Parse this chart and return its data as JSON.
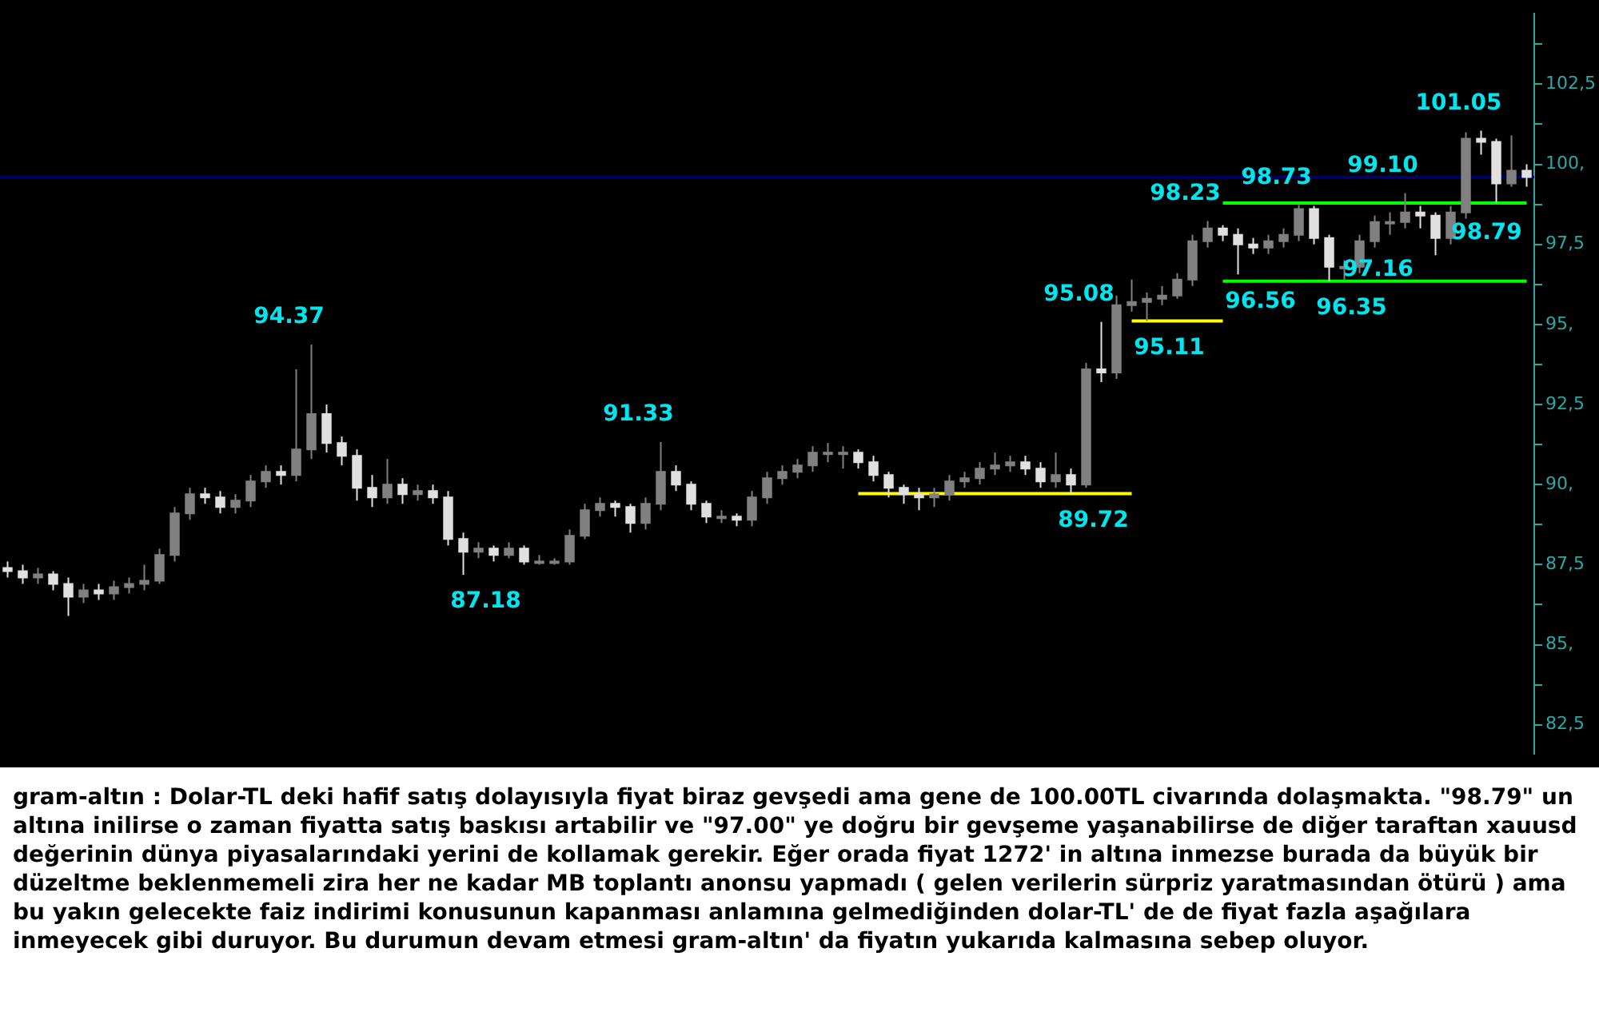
{
  "chart_data": {
    "type": "candlestick",
    "colors": [
      "#e0e0e0",
      "#e0e0e0",
      "#808080",
      "#e0e0e0",
      "#e0e0e0",
      "#808080",
      "#e0e0e0",
      "#808080",
      "#808080",
      "#808080",
      "#808080",
      "#808080",
      "#808080",
      "#e0e0e0",
      "#e0e0e0",
      "#808080",
      "#808080",
      "#808080",
      "#e0e0e0",
      "#808080",
      "#808080",
      "#e0e0e0",
      "#e0e0e0",
      "#e0e0e0",
      "#e0e0e0",
      "#808080",
      "#e0e0e0",
      "#808080",
      "#e0e0e0",
      "#e0e0e0",
      "#e0e0e0",
      "#808080",
      "#e0e0e0",
      "#808080",
      "#e0e0e0",
      "#808080",
      "#808080",
      "#808080",
      "#808080",
      "#808080",
      "#e0e0e0",
      "#e0e0e0",
      "#808080",
      "#808080",
      "#e0e0e0",
      "#e0e0e0",
      "#e0e0e0",
      "#808080",
      "#e0e0e0",
      "#808080",
      "#808080",
      "#808080",
      "#808080",
      "#808080",
      "#808080",
      "#808080",
      "#e0e0e0",
      "#e0e0e0",
      "#e0e0e0",
      "#e0e0e0",
      "#e0e0e0",
      "#808080",
      "#808080",
      "#808080",
      "#808080",
      "#808080",
      "#808080",
      "#e0e0e0",
      "#e0e0e0",
      "#808080",
      "#e0e0e0",
      "#808080",
      "#e0e0e0",
      "#808080",
      "#808080",
      "#808080",
      "#808080",
      "#808080",
      "#808080",
      "#808080",
      "#e0e0e0",
      "#e0e0e0",
      "#e0e0e0",
      "#808080",
      "#808080",
      "#808080",
      "#e0e0e0",
      "#e0e0e0",
      "#808080",
      "#808080",
      "#808080",
      "#808080",
      "#808080",
      "#e0e0e0",
      "#e0e0e0",
      "#808080",
      "#808080",
      "#e0e0e0",
      "#e0e0e0",
      "#808080",
      "#e0e0e0"
    ],
    "categories": [
      null,
      null,
      null,
      null,
      null,
      null,
      null,
      null,
      null,
      null,
      null,
      null,
      null,
      null,
      null,
      null,
      null,
      null,
      null,
      null,
      null,
      null,
      null,
      null,
      null,
      null,
      null,
      null,
      null,
      null,
      null,
      null,
      null,
      null,
      null,
      null,
      null,
      null,
      null,
      null,
      null,
      null,
      null,
      null,
      null,
      null,
      null,
      null,
      null,
      null,
      null,
      null,
      null,
      null,
      null,
      null,
      null,
      null,
      null,
      null,
      null,
      null,
      null,
      null,
      null,
      null,
      null,
      null,
      null,
      null,
      null,
      null,
      null,
      null,
      null,
      null,
      null,
      null,
      null,
      null,
      null,
      null,
      null,
      null,
      null,
      null,
      null,
      null,
      null,
      null,
      null,
      null,
      null,
      null,
      null,
      null,
      null,
      null,
      null,
      null,
      null
    ],
    "ohlc": [
      [
        87.4,
        87.6,
        87.1,
        87.3
      ],
      [
        87.3,
        87.5,
        86.9,
        87.1
      ],
      [
        87.1,
        87.4,
        86.9,
        87.2
      ],
      [
        87.2,
        87.3,
        86.7,
        86.9
      ],
      [
        86.9,
        87.1,
        85.9,
        86.5
      ],
      [
        86.5,
        86.9,
        86.3,
        86.7
      ],
      [
        86.7,
        86.9,
        86.4,
        86.6
      ],
      [
        86.6,
        87.0,
        86.4,
        86.8
      ],
      [
        86.8,
        87.1,
        86.6,
        86.9
      ],
      [
        86.9,
        87.5,
        86.7,
        87.0
      ],
      [
        87.0,
        88.0,
        86.9,
        87.8
      ],
      [
        87.8,
        89.3,
        87.6,
        89.1
      ],
      [
        89.1,
        89.9,
        88.9,
        89.7
      ],
      [
        89.7,
        89.9,
        89.4,
        89.6
      ],
      [
        89.6,
        89.8,
        89.1,
        89.3
      ],
      [
        89.3,
        89.7,
        89.1,
        89.5
      ],
      [
        89.5,
        90.3,
        89.3,
        90.1
      ],
      [
        90.1,
        90.6,
        89.9,
        90.4
      ],
      [
        90.4,
        90.6,
        90.0,
        90.3
      ],
      [
        90.3,
        93.6,
        90.1,
        91.1
      ],
      [
        91.1,
        94.37,
        90.8,
        92.2
      ],
      [
        92.2,
        92.5,
        91.0,
        91.3
      ],
      [
        91.3,
        91.5,
        90.6,
        90.9
      ],
      [
        90.9,
        91.1,
        89.5,
        89.9
      ],
      [
        89.9,
        90.3,
        89.3,
        89.6
      ],
      [
        89.6,
        90.8,
        89.4,
        90.0
      ],
      [
        90.0,
        90.2,
        89.4,
        89.7
      ],
      [
        89.7,
        90.0,
        89.5,
        89.8
      ],
      [
        89.8,
        90.0,
        89.4,
        89.6
      ],
      [
        89.6,
        89.8,
        88.1,
        88.3
      ],
      [
        88.3,
        88.5,
        87.18,
        87.9
      ],
      [
        87.9,
        88.2,
        87.7,
        88.0
      ],
      [
        88.0,
        88.1,
        87.6,
        87.8
      ],
      [
        87.8,
        88.2,
        87.7,
        88.0
      ],
      [
        88.0,
        88.1,
        87.5,
        87.6
      ],
      [
        87.6,
        87.8,
        87.5,
        87.6
      ],
      [
        87.6,
        87.7,
        87.5,
        87.6
      ],
      [
        87.6,
        88.6,
        87.5,
        88.4
      ],
      [
        88.4,
        89.4,
        88.3,
        89.2
      ],
      [
        89.2,
        89.6,
        89.0,
        89.4
      ],
      [
        89.4,
        89.5,
        89.0,
        89.3
      ],
      [
        89.3,
        89.4,
        88.5,
        88.8
      ],
      [
        88.8,
        89.6,
        88.6,
        89.4
      ],
      [
        89.4,
        91.33,
        89.2,
        90.4
      ],
      [
        90.4,
        90.6,
        89.8,
        90.0
      ],
      [
        90.0,
        90.1,
        89.2,
        89.4
      ],
      [
        89.4,
        89.5,
        88.8,
        89.0
      ],
      [
        89.0,
        89.2,
        88.8,
        89.0
      ],
      [
        89.0,
        89.1,
        88.7,
        88.9
      ],
      [
        88.9,
        89.8,
        88.7,
        89.6
      ],
      [
        89.6,
        90.4,
        89.4,
        90.2
      ],
      [
        90.2,
        90.6,
        90.0,
        90.4
      ],
      [
        90.4,
        90.8,
        90.2,
        90.6
      ],
      [
        90.6,
        91.2,
        90.4,
        91.0
      ],
      [
        91.0,
        91.3,
        90.7,
        91.0
      ],
      [
        91.0,
        91.2,
        90.5,
        91.0
      ],
      [
        91.0,
        91.1,
        90.5,
        90.7
      ],
      [
        90.7,
        90.9,
        90.1,
        90.3
      ],
      [
        90.3,
        90.4,
        89.6,
        89.9
      ],
      [
        89.9,
        90.0,
        89.4,
        89.7
      ],
      [
        89.7,
        89.9,
        89.2,
        89.6
      ],
      [
        89.6,
        89.9,
        89.3,
        89.7
      ],
      [
        89.7,
        90.3,
        89.5,
        90.1
      ],
      [
        90.1,
        90.4,
        89.9,
        90.2
      ],
      [
        90.2,
        90.7,
        90.0,
        90.5
      ],
      [
        90.5,
        91.0,
        90.3,
        90.6
      ],
      [
        90.6,
        90.9,
        90.4,
        90.7
      ],
      [
        90.7,
        90.9,
        90.3,
        90.5
      ],
      [
        90.5,
        90.7,
        89.9,
        90.1
      ],
      [
        90.1,
        91.0,
        89.9,
        90.3
      ],
      [
        90.3,
        90.5,
        89.72,
        90.0
      ],
      [
        90.0,
        93.8,
        89.9,
        93.6
      ],
      [
        93.6,
        95.08,
        93.2,
        93.5
      ],
      [
        93.5,
        95.9,
        93.3,
        95.6
      ],
      [
        95.6,
        96.4,
        95.4,
        95.7
      ],
      [
        95.7,
        96.0,
        95.11,
        95.8
      ],
      [
        95.8,
        96.2,
        95.6,
        95.9
      ],
      [
        95.9,
        96.6,
        95.8,
        96.4
      ],
      [
        96.4,
        97.8,
        96.2,
        97.6
      ],
      [
        97.6,
        98.23,
        97.4,
        98.0
      ],
      [
        98.0,
        98.1,
        97.6,
        97.8
      ],
      [
        97.8,
        98.0,
        96.56,
        97.5
      ],
      [
        97.5,
        97.7,
        97.2,
        97.4
      ],
      [
        97.4,
        97.8,
        97.2,
        97.6
      ],
      [
        97.6,
        98.0,
        97.4,
        97.8
      ],
      [
        97.8,
        98.73,
        97.6,
        98.6
      ],
      [
        98.6,
        98.7,
        97.5,
        97.7
      ],
      [
        97.7,
        97.8,
        96.35,
        96.8
      ],
      [
        96.8,
        97.0,
        96.4,
        96.8
      ],
      [
        96.8,
        97.8,
        96.6,
        97.6
      ],
      [
        97.6,
        98.4,
        97.4,
        98.2
      ],
      [
        98.2,
        98.5,
        97.8,
        98.2
      ],
      [
        98.2,
        99.1,
        98.0,
        98.5
      ],
      [
        98.5,
        98.7,
        98.0,
        98.4
      ],
      [
        98.4,
        98.5,
        97.16,
        97.7
      ],
      [
        97.7,
        98.7,
        97.5,
        98.5
      ],
      [
        98.5,
        101.0,
        98.3,
        100.8
      ],
      [
        100.8,
        101.05,
        100.3,
        100.7
      ],
      [
        100.7,
        100.8,
        98.79,
        99.4
      ],
      [
        99.4,
        100.9,
        99.3,
        99.8
      ],
      [
        99.8,
        100.0,
        99.3,
        99.6
      ]
    ],
    "series": [
      {
        "type": "line",
        "color": "#ffff00",
        "values": [
          null,
          null,
          null,
          null,
          null,
          null,
          null,
          null,
          null,
          null,
          null,
          null,
          null,
          null,
          null,
          null,
          null,
          null,
          null,
          null,
          null,
          null,
          null,
          null,
          null,
          null,
          null,
          null,
          null,
          null,
          null,
          null,
          null,
          null,
          null,
          null,
          null,
          null,
          null,
          null,
          null,
          null,
          null,
          null,
          null,
          null,
          null,
          null,
          null,
          null,
          null,
          null,
          null,
          null,
          null,
          null,
          89.72,
          89.72,
          89.72,
          89.72,
          89.72,
          89.72,
          89.72,
          89.72,
          89.72,
          89.72,
          89.72,
          89.72,
          89.72,
          89.72,
          89.72,
          89.72,
          89.72,
          89.72,
          89.72,
          null,
          null,
          null,
          null,
          null,
          null,
          null,
          null,
          null,
          null,
          null,
          null,
          null,
          null,
          null,
          null,
          null,
          null,
          null,
          null,
          null,
          null,
          null,
          null,
          null,
          null
        ]
      },
      {
        "type": "line",
        "color": "#ffff00",
        "values": [
          null,
          null,
          null,
          null,
          null,
          null,
          null,
          null,
          null,
          null,
          null,
          null,
          null,
          null,
          null,
          null,
          null,
          null,
          null,
          null,
          null,
          null,
          null,
          null,
          null,
          null,
          null,
          null,
          null,
          null,
          null,
          null,
          null,
          null,
          null,
          null,
          null,
          null,
          null,
          null,
          null,
          null,
          null,
          null,
          null,
          null,
          null,
          null,
          null,
          null,
          null,
          null,
          null,
          null,
          null,
          null,
          null,
          null,
          null,
          null,
          null,
          null,
          null,
          null,
          null,
          null,
          null,
          null,
          null,
          null,
          null,
          null,
          null,
          null,
          95.11,
          95.11,
          95.11,
          95.11,
          95.11,
          95.11,
          95.11,
          null,
          null,
          null,
          null,
          null,
          null,
          null,
          null,
          null,
          null,
          null,
          null,
          null,
          null,
          null,
          null,
          null,
          null,
          null,
          null
        ]
      },
      {
        "type": "line",
        "color": "#00ff00",
        "values": [
          null,
          null,
          null,
          null,
          null,
          null,
          null,
          null,
          null,
          null,
          null,
          null,
          null,
          null,
          null,
          null,
          null,
          null,
          null,
          null,
          null,
          null,
          null,
          null,
          null,
          null,
          null,
          null,
          null,
          null,
          null,
          null,
          null,
          null,
          null,
          null,
          null,
          null,
          null,
          null,
          null,
          null,
          null,
          null,
          null,
          null,
          null,
          null,
          null,
          null,
          null,
          null,
          null,
          null,
          null,
          null,
          null,
          null,
          null,
          null,
          null,
          null,
          null,
          null,
          null,
          null,
          null,
          null,
          null,
          null,
          null,
          null,
          null,
          null,
          null,
          null,
          null,
          null,
          null,
          null,
          98.79,
          98.79,
          98.79,
          98.79,
          98.79,
          98.79,
          98.79,
          98.79,
          98.79,
          98.79,
          98.79,
          98.79,
          98.79,
          98.79,
          98.79,
          98.79,
          98.79,
          98.79,
          98.79,
          98.79,
          98.79
        ]
      },
      {
        "type": "line",
        "color": "#00ff00",
        "values": [
          null,
          null,
          null,
          null,
          null,
          null,
          null,
          null,
          null,
          null,
          null,
          null,
          null,
          null,
          null,
          null,
          null,
          null,
          null,
          null,
          null,
          null,
          null,
          null,
          null,
          null,
          null,
          null,
          null,
          null,
          null,
          null,
          null,
          null,
          null,
          null,
          null,
          null,
          null,
          null,
          null,
          null,
          null,
          null,
          null,
          null,
          null,
          null,
          null,
          null,
          null,
          null,
          null,
          null,
          null,
          null,
          null,
          null,
          null,
          null,
          null,
          null,
          null,
          null,
          null,
          null,
          null,
          null,
          null,
          null,
          null,
          null,
          null,
          null,
          null,
          null,
          null,
          null,
          null,
          null,
          96.35,
          96.35,
          96.35,
          96.35,
          96.35,
          96.35,
          96.35,
          96.35,
          96.35,
          96.35,
          96.35,
          96.35,
          96.35,
          96.35,
          96.35,
          96.35,
          96.35,
          96.35,
          96.35,
          96.35,
          96.35
        ]
      }
    ],
    "ref_lines": [
      {
        "axis": "y",
        "value": 99.6,
        "color": "#000066"
      }
    ],
    "marker": "none",
    "legend": false,
    "grid": false,
    "tick_labels": "y",
    "ylim": [
      81.6,
      104.7
    ],
    "yticks": [
      {
        "value": 82.5,
        "label": "82,5"
      },
      {
        "value": 83.75,
        "label": null
      },
      {
        "value": 85,
        "label": "85,"
      },
      {
        "value": 86.25,
        "label": null
      },
      {
        "value": 87.5,
        "label": "87,5"
      },
      {
        "value": 88.75,
        "label": null
      },
      {
        "value": 90,
        "label": "90,"
      },
      {
        "value": 91.25,
        "label": null
      },
      {
        "value": 92.5,
        "label": "92,5"
      },
      {
        "value": 93.75,
        "label": null
      },
      {
        "value": 95,
        "label": "95,"
      },
      {
        "value": 96.25,
        "label": null
      },
      {
        "value": 97.5,
        "label": "97,5"
      },
      {
        "value": 98.75,
        "label": null
      },
      {
        "value": 100,
        "label": "100,"
      },
      {
        "value": 101.25,
        "label": null
      },
      {
        "value": 102.5,
        "label": "102,5"
      },
      {
        "value": 103.75,
        "label": null
      }
    ],
    "annotations": [
      "94.37",
      "87.18",
      "91.33",
      "89.72",
      "95.08",
      "95.11",
      "98.23",
      "96.56",
      "98.73",
      "96.35",
      "99.10",
      "97.16",
      "101.05",
      "98.79",
      "gram-altın : Dolar-TL deki hafif satış dolayısıyla fiyat biraz gevşedi ama gene de 100.00TL civarında dolaşmakta. \"98.79\" un altına inilirse o zaman fiyatta satış baskısı artabilir ve \"97.00\" ye doğru bir gevşeme yaşanabilirse de diğer taraftan xauusd değerinin dünya piyasalarındaki yerini de kollamak gerekir. Eğer orada fiyat 1272' in altına inmezse burada da büyük bir düzeltme beklenmemeli zira her ne kadar MB toplantı anonsu yapmadı ( gelen verilerin sürpriz yaratmasından ötürü ) ama bu yakın gelecekte faiz indirimi konusunun kapanması anlamına gelmediğinden dolar-TL' de de fiyat fazla aşağılara inmeyecek gibi duruyor. Bu durumun devam etmesi gram-altın' da fiyatın yukarıda kalmasına sebep oluyor."
    ]
  }
}
